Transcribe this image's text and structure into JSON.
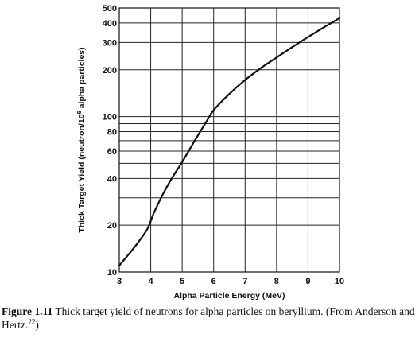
{
  "chart_data": {
    "type": "line",
    "xlabel": "Alpha Particle Energy (MeV)",
    "ylabel": {
      "pre": "Thick Target Yield (neutron/10",
      "sup": "6",
      "post": " alpha particles)"
    },
    "xlim": [
      3,
      10
    ],
    "ylim": [
      10,
      500
    ],
    "y_scale": "log",
    "x_ticks": [
      "3",
      "4",
      "5",
      "6",
      "7",
      "8",
      "9",
      "10"
    ],
    "y_ticks": [
      "10",
      "20",
      "40",
      "60",
      "80",
      "100",
      "200",
      "300",
      "400",
      "500"
    ],
    "grid": true,
    "series": [
      {
        "x": [
          3.0,
          3.3,
          3.6,
          3.9,
          4.1,
          4.4,
          4.7,
          5.0,
          5.4,
          5.8,
          6.0,
          6.5,
          7.0,
          7.5,
          8.0,
          8.5,
          9.0,
          9.5,
          10.0
        ],
        "values": [
          11,
          13,
          15.5,
          19,
          24,
          32,
          41,
          51,
          70,
          95,
          110,
          140,
          172,
          205,
          240,
          280,
          325,
          375,
          430
        ]
      }
    ]
  },
  "caption": {
    "figure_number": "Figure 1.11",
    "text": " Thick target yield of neutrons for alpha particles on beryllium. (From Anderson and Hertz.",
    "ref": "22",
    "end": ")"
  }
}
